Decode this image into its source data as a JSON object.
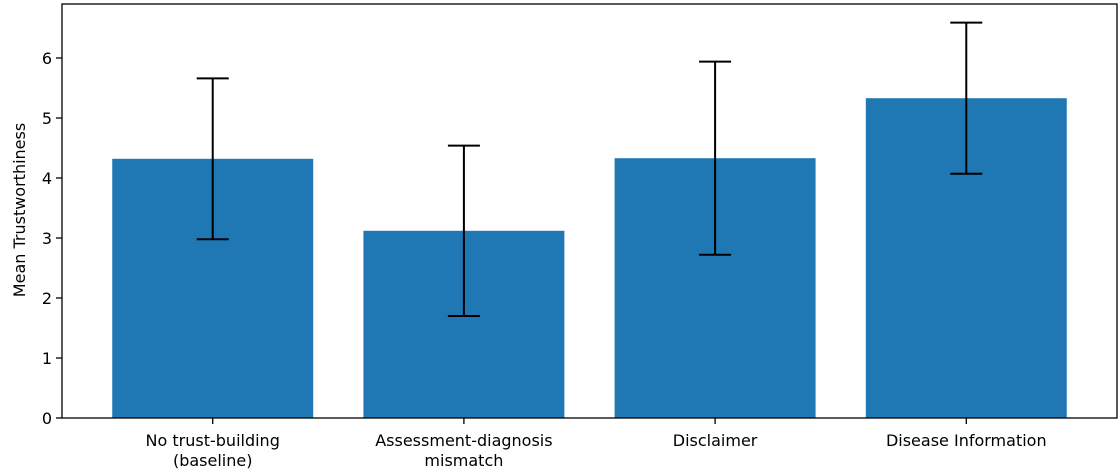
{
  "chart_data": {
    "type": "bar",
    "title": "",
    "xlabel": "",
    "ylabel": "Mean Trustworthiness",
    "categories": [
      [
        "No trust-building",
        "(baseline)"
      ],
      [
        "Assessment-diagnosis",
        "mismatch"
      ],
      [
        "Disclaimer"
      ],
      [
        "Disease Information"
      ]
    ],
    "values": [
      4.32,
      3.12,
      4.33,
      5.33
    ],
    "error_low": [
      2.98,
      1.7,
      2.72,
      4.07
    ],
    "error_high": [
      5.66,
      4.54,
      5.94,
      6.59
    ],
    "ylim": [
      0,
      6.9
    ],
    "yticks": [
      "0",
      "1",
      "2",
      "3",
      "4",
      "5",
      "6"
    ],
    "grid": false,
    "colors": {
      "bar": "#1f77b4",
      "error_bar": "#000000",
      "axis": "#000000"
    }
  }
}
